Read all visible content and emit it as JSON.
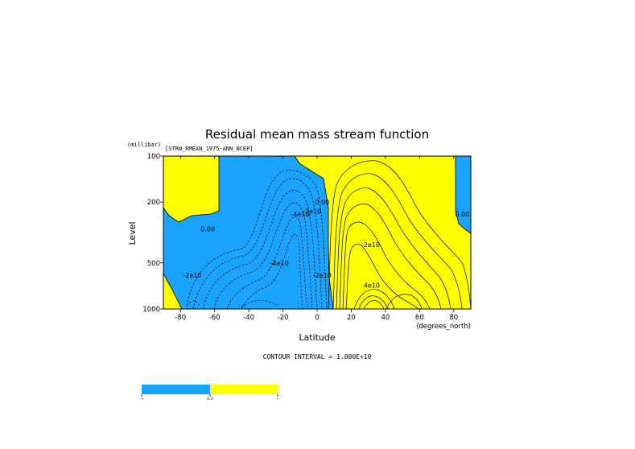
{
  "chart_data": {
    "type": "contour",
    "title": "Residual mean mass stream function",
    "subtitle": "[STRW_RMEAN_1975-ANN_NCEP]",
    "xlabel": "Latitude",
    "xunits": "(degrees_north)",
    "ylabel": "Level",
    "yunits": "(millibar)",
    "xlim": [
      -90,
      90
    ],
    "ylim": [
      1000,
      100
    ],
    "y_scale": "log",
    "x_ticks": [
      -80,
      -60,
      -40,
      -20,
      0,
      20,
      40,
      60,
      80
    ],
    "y_ticks": [
      100,
      200,
      500,
      1000
    ],
    "y_tick_labels": [
      "100",
      "200",
      "500",
      "1000"
    ],
    "contour_interval_label": "CONTOUR INTERVAL = 1.000E+10",
    "colors": {
      "negative": "#1aa3ff",
      "positive": "#ffff00"
    },
    "colorbar_labels": [
      "-∞",
      "0.0",
      "∞"
    ],
    "contour_labels": [
      {
        "text": "0.00",
        "x": -64,
        "y": 300
      },
      {
        "text": "-2e10",
        "x": -73,
        "y": 600
      },
      {
        "text": "-4e10",
        "x": -22,
        "y": 500
      },
      {
        "text": "-4e10",
        "x": -10,
        "y": 240
      },
      {
        "text": "-2e10",
        "x": -3,
        "y": 230
      },
      {
        "text": "0.00",
        "x": 3,
        "y": 200
      },
      {
        "text": "2e10",
        "x": 32,
        "y": 380
      },
      {
        "text": "4e10",
        "x": 32,
        "y": 700
      },
      {
        "text": "-2e10",
        "x": 3,
        "y": 600
      },
      {
        "text": "0.00",
        "x": 85,
        "y": 240
      }
    ]
  }
}
